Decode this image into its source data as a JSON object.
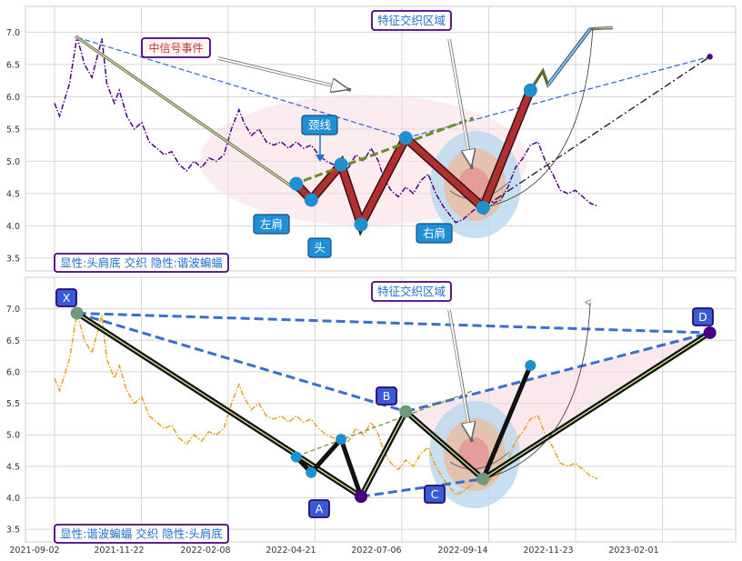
{
  "colors": {
    "purple_price": "#4b0082",
    "orange_price": "#e8a020",
    "pattern_red": "#b03030",
    "green_dash": "#6b8e23",
    "blue_dash": "#3a6fd0",
    "annot_border": "#4b0082",
    "annot_text_blue": "#1e6fd0",
    "annot_text_red": "#c0392b",
    "node_blue": "#1e90d0",
    "letter_box": "#3b5bd8"
  },
  "x_tick_labels": [
    "2021-09-02",
    "2021-11-22",
    "2022-02-08",
    "2022-04-21",
    "2022-07-06",
    "2022-09-14",
    "2022-11-23",
    "2023-02-01"
  ],
  "chart_data": [
    {
      "type": "line",
      "panel": "top",
      "ylim": [
        3.3,
        7.4
      ],
      "y_ticks": [
        "3.5",
        "4.0",
        "4.5",
        "5.0",
        "5.5",
        "6.0",
        "6.5",
        "7.0"
      ],
      "price_series": [
        [
          0,
          5.9
        ],
        [
          0.1,
          5.7
        ],
        [
          0.3,
          6.2
        ],
        [
          0.45,
          6.93
        ],
        [
          0.6,
          6.5
        ],
        [
          0.75,
          6.3
        ],
        [
          0.85,
          6.6
        ],
        [
          0.95,
          6.9
        ],
        [
          1.05,
          6.2
        ],
        [
          1.2,
          5.9
        ],
        [
          1.3,
          6.1
        ],
        [
          1.45,
          5.7
        ],
        [
          1.6,
          5.5
        ],
        [
          1.75,
          5.6
        ],
        [
          1.9,
          5.3
        ],
        [
          2.05,
          5.2
        ],
        [
          2.2,
          5.1
        ],
        [
          2.35,
          5.15
        ],
        [
          2.5,
          4.95
        ],
        [
          2.65,
          4.85
        ],
        [
          2.8,
          5.0
        ],
        [
          2.95,
          4.9
        ],
        [
          3.1,
          5.05
        ],
        [
          3.25,
          5.0
        ],
        [
          3.4,
          5.1
        ],
        [
          3.55,
          5.5
        ],
        [
          3.7,
          5.8
        ],
        [
          3.8,
          5.6
        ],
        [
          3.95,
          5.4
        ],
        [
          4.1,
          5.5
        ],
        [
          4.25,
          5.3
        ],
        [
          4.4,
          5.25
        ],
        [
          4.55,
          5.3
        ],
        [
          4.7,
          5.2
        ],
        [
          4.85,
          5.3
        ],
        [
          5.0,
          5.2
        ],
        [
          5.15,
          5.25
        ],
        [
          5.3,
          5.1
        ],
        [
          5.45,
          5.0
        ],
        [
          5.6,
          4.95
        ],
        [
          5.75,
          4.85
        ],
        [
          5.9,
          4.9
        ],
        [
          6.05,
          5.1
        ],
        [
          6.2,
          5.0
        ],
        [
          6.35,
          5.2
        ],
        [
          6.5,
          5.0
        ],
        [
          6.6,
          4.75
        ],
        [
          6.75,
          4.55
        ],
        [
          6.9,
          4.45
        ],
        [
          7.05,
          4.6
        ],
        [
          7.2,
          4.5
        ],
        [
          7.35,
          4.7
        ],
        [
          7.5,
          4.8
        ],
        [
          7.65,
          4.5
        ],
        [
          7.8,
          4.3
        ],
        [
          7.95,
          4.15
        ],
        [
          8.05,
          4.05
        ],
        [
          8.2,
          4.1
        ],
        [
          8.35,
          4.2
        ],
        [
          8.5,
          4.3
        ],
        [
          8.65,
          4.2
        ],
        [
          8.8,
          4.35
        ],
        [
          8.95,
          4.4
        ],
        [
          9.1,
          4.6
        ],
        [
          9.25,
          4.9
        ],
        [
          9.4,
          5.05
        ],
        [
          9.55,
          5.25
        ],
        [
          9.7,
          5.3
        ],
        [
          9.85,
          5.0
        ],
        [
          10.0,
          4.8
        ],
        [
          10.15,
          4.55
        ],
        [
          10.3,
          4.5
        ],
        [
          10.45,
          4.55
        ],
        [
          10.6,
          4.45
        ],
        [
          10.75,
          4.35
        ],
        [
          10.9,
          4.3
        ]
      ],
      "zigzag": [
        [
          0.45,
          6.92
        ],
        [
          5.15,
          4.4
        ],
        [
          5.75,
          4.95
        ],
        [
          6.15,
          4.02
        ],
        [
          7.05,
          5.36
        ],
        [
          8.6,
          4.28
        ],
        [
          9.55,
          6.1
        ],
        [
          9.8,
          6.4
        ],
        [
          9.9,
          6.18
        ],
        [
          10.75,
          7.05
        ],
        [
          11.2,
          7.07
        ]
      ],
      "pattern_path": [
        [
          4.85,
          4.65
        ],
        [
          5.15,
          4.4
        ],
        [
          5.75,
          4.95
        ],
        [
          6.15,
          4.02
        ],
        [
          7.05,
          5.36
        ],
        [
          8.6,
          4.28
        ],
        [
          9.55,
          6.1
        ]
      ],
      "pattern_nodes": [
        [
          4.85,
          4.65
        ],
        [
          5.15,
          4.4
        ],
        [
          5.75,
          4.95
        ],
        [
          6.15,
          4.02
        ],
        [
          7.05,
          5.36
        ],
        [
          8.6,
          4.28
        ],
        [
          9.55,
          6.1
        ]
      ],
      "neckline": [
        [
          5.0,
          4.7
        ],
        [
          8.4,
          5.67
        ]
      ],
      "blue_dash": [
        [
          0.45,
          6.92
        ],
        [
          7.05,
          5.36
        ],
        [
          13.15,
          6.62
        ]
      ],
      "dashdot": [
        [
          8.6,
          4.28
        ],
        [
          13.15,
          6.62
        ]
      ],
      "cyan_tip": [
        [
          9.9,
          6.18
        ],
        [
          10.75,
          7.05
        ]
      ],
      "annotations": [
        {
          "key": "neg_event"
        },
        {
          "key": "neckline"
        },
        {
          "key": "left_shoulder"
        },
        {
          "key": "head"
        },
        {
          "key": "right_shoulder"
        },
        {
          "key": "zone"
        },
        {
          "key": "summary"
        }
      ]
    },
    {
      "type": "line",
      "panel": "bottom",
      "ylim": [
        3.3,
        7.5
      ],
      "y_ticks": [
        "3.5",
        "4.0",
        "4.5",
        "5.0",
        "5.5",
        "6.0",
        "6.5",
        "7.0"
      ],
      "price_series": [
        [
          0,
          5.9
        ],
        [
          0.1,
          5.7
        ],
        [
          0.3,
          6.2
        ],
        [
          0.45,
          6.93
        ],
        [
          0.6,
          6.5
        ],
        [
          0.75,
          6.3
        ],
        [
          0.85,
          6.6
        ],
        [
          0.95,
          6.9
        ],
        [
          1.05,
          6.2
        ],
        [
          1.2,
          5.9
        ],
        [
          1.3,
          6.1
        ],
        [
          1.45,
          5.7
        ],
        [
          1.6,
          5.5
        ],
        [
          1.75,
          5.6
        ],
        [
          1.9,
          5.3
        ],
        [
          2.05,
          5.2
        ],
        [
          2.2,
          5.1
        ],
        [
          2.35,
          5.15
        ],
        [
          2.5,
          4.95
        ],
        [
          2.65,
          4.85
        ],
        [
          2.8,
          5.0
        ],
        [
          2.95,
          4.9
        ],
        [
          3.1,
          5.05
        ],
        [
          3.25,
          5.0
        ],
        [
          3.4,
          5.1
        ],
        [
          3.55,
          5.5
        ],
        [
          3.7,
          5.8
        ],
        [
          3.8,
          5.6
        ],
        [
          3.95,
          5.4
        ],
        [
          4.1,
          5.5
        ],
        [
          4.25,
          5.3
        ],
        [
          4.4,
          5.25
        ],
        [
          4.55,
          5.3
        ],
        [
          4.7,
          5.2
        ],
        [
          4.85,
          5.3
        ],
        [
          5.0,
          5.2
        ],
        [
          5.15,
          5.25
        ],
        [
          5.3,
          5.1
        ],
        [
          5.45,
          5.0
        ],
        [
          5.6,
          4.95
        ],
        [
          5.75,
          4.85
        ],
        [
          5.9,
          4.9
        ],
        [
          6.05,
          5.1
        ],
        [
          6.2,
          5.0
        ],
        [
          6.35,
          5.2
        ],
        [
          6.5,
          5.0
        ],
        [
          6.6,
          4.75
        ],
        [
          6.75,
          4.55
        ],
        [
          6.9,
          4.45
        ],
        [
          7.05,
          4.6
        ],
        [
          7.2,
          4.5
        ],
        [
          7.35,
          4.7
        ],
        [
          7.5,
          4.8
        ],
        [
          7.65,
          4.5
        ],
        [
          7.8,
          4.3
        ],
        [
          7.95,
          4.15
        ],
        [
          8.05,
          4.05
        ],
        [
          8.2,
          4.1
        ],
        [
          8.35,
          4.2
        ],
        [
          8.5,
          4.3
        ],
        [
          8.65,
          4.2
        ],
        [
          8.8,
          4.35
        ],
        [
          8.95,
          4.4
        ],
        [
          9.1,
          4.6
        ],
        [
          9.25,
          4.9
        ],
        [
          9.4,
          5.05
        ],
        [
          9.55,
          5.25
        ],
        [
          9.7,
          5.3
        ],
        [
          9.85,
          5.0
        ],
        [
          10.0,
          4.8
        ],
        [
          10.15,
          4.55
        ],
        [
          10.3,
          4.5
        ],
        [
          10.45,
          4.55
        ],
        [
          10.6,
          4.45
        ],
        [
          10.75,
          4.35
        ],
        [
          10.9,
          4.3
        ]
      ],
      "harmonic": {
        "X": [
          0.45,
          6.93
        ],
        "A": [
          6.15,
          4.02
        ],
        "B": [
          7.05,
          5.37
        ],
        "C": [
          8.6,
          4.3
        ],
        "D": [
          13.15,
          6.62
        ]
      },
      "extra_path": [
        [
          4.85,
          4.65
        ],
        [
          5.15,
          4.4
        ],
        [
          5.75,
          4.93
        ],
        [
          6.15,
          4.02
        ]
      ],
      "extra_c_to": [
        9.55,
        6.1
      ],
      "neckline": [
        [
          5.0,
          4.7
        ],
        [
          8.4,
          5.7
        ]
      ],
      "annotations": [
        {
          "key": "zone"
        },
        {
          "key": "summary"
        }
      ]
    }
  ],
  "labels": {
    "top": {
      "neg_event": "中信号事件",
      "neckline": "颈线",
      "left_shoulder": "左肩",
      "head": "头",
      "right_shoulder": "右肩",
      "zone": "特征交织区域",
      "summary": "显性:头肩底 交织 隐性:谐波蝙蝠"
    },
    "bottom": {
      "zone": "特征交织区域",
      "summary": "显性:谐波蝙蝠 交织 隐性:头肩底",
      "X": "X",
      "A": "A",
      "B": "B",
      "C": "C",
      "D": "D"
    }
  }
}
